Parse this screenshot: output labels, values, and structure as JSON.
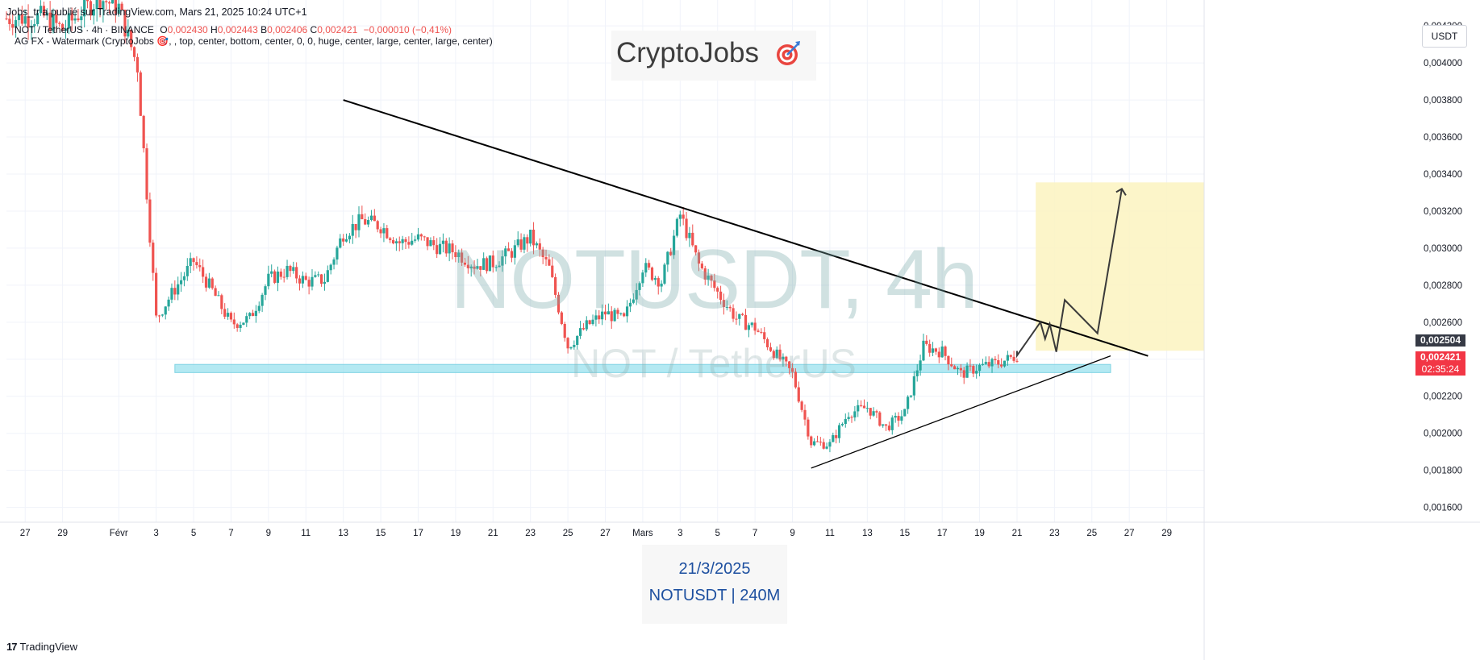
{
  "header": {
    "published_by": "Jobs_tr a publié sur TradingView.com, Mars 21, 2025 10:24 UTC+1"
  },
  "legend": {
    "symbol_line": "NOT / TetherUS · 4h · BINANCE",
    "o_label": "O",
    "o_value": "0,002430",
    "h_label": "H",
    "h_value": "0,002443",
    "b_label": "B",
    "b_value": "0,002406",
    "c_label": "C",
    "c_value": "0,002421",
    "change": "−0,000010 (−0,41%)",
    "indicator_line": "AG FX - Watermark (CryptoJobs 🎯, , top, center, bottom, center, 0, 0, huge, center, large, center, large, center)"
  },
  "watermark": {
    "brand": "CryptoJobs",
    "symbol_big": "NOTUSDT, 4h",
    "symbol_small": "NOT / TetherUS",
    "date": "21/3/2025",
    "ticker_tf": "NOTUSDT | 240M"
  },
  "currency_button": "USDT",
  "price_tags": {
    "level_price": "0,002504",
    "last_price": "0,002421",
    "countdown": "02:35:24"
  },
  "footer": {
    "logo_mark": "17",
    "brand": "TradingView"
  },
  "colors": {
    "up": "#26a69a",
    "down": "#ef5350",
    "support_zone": "#9be2ee",
    "target_zone": "#fbf3bf",
    "trendline": "#000000",
    "projection": "#3a3a3a",
    "grid": "#f0f3fa",
    "tag_dark": "#363a45"
  },
  "chart_data": {
    "type": "candlestick",
    "title": "NOTUSDT, 4h",
    "yaxis": {
      "min": 0.00152,
      "max": 0.00434,
      "ticks": [
        0.0016,
        0.0018,
        0.002,
        0.0022,
        0.0024,
        0.0026,
        0.0028,
        0.003,
        0.0032,
        0.0034,
        0.0036,
        0.0038,
        0.004,
        0.0042
      ],
      "tick_labels": [
        "0,001600",
        "0,001800",
        "0,002000",
        "0,002200",
        "0,002400",
        "0,002600",
        "0,002800",
        "0,003000",
        "0,003200",
        "0,003400",
        "0,003600",
        "0,003800",
        "0,004000",
        "0,004200"
      ]
    },
    "xaxis": {
      "tick_labels": [
        "27",
        "29",
        "Févr",
        "3",
        "5",
        "7",
        "9",
        "11",
        "13",
        "15",
        "17",
        "19",
        "21",
        "23",
        "25",
        "27",
        "Mars",
        "3",
        "5",
        "7",
        "9",
        "11",
        "13",
        "15",
        "17",
        "19",
        "21",
        "23",
        "25",
        "27",
        "29"
      ],
      "tick_dates": [
        "2025-01-27",
        "2025-01-29",
        "2025-02-01",
        "2025-02-03",
        "2025-02-05",
        "2025-02-07",
        "2025-02-09",
        "2025-02-11",
        "2025-02-13",
        "2025-02-15",
        "2025-02-17",
        "2025-02-19",
        "2025-02-21",
        "2025-02-23",
        "2025-02-25",
        "2025-02-27",
        "2025-03-01",
        "2025-03-03",
        "2025-03-05",
        "2025-03-07",
        "2025-03-09",
        "2025-03-11",
        "2025-03-13",
        "2025-03-15",
        "2025-03-17",
        "2025-03-19",
        "2025-03-21",
        "2025-03-23",
        "2025-03-25",
        "2025-03-27",
        "2025-03-29"
      ],
      "range": [
        "2025-01-26",
        "2025-03-31"
      ]
    },
    "price_path": [
      [
        "2025-01-26",
        0.00424
      ],
      [
        "2025-01-28",
        0.00425
      ],
      [
        "2025-01-29",
        0.00418
      ],
      [
        "2025-01-30",
        0.00428
      ],
      [
        "2025-01-31",
        0.00435
      ],
      [
        "2025-02-01",
        0.0043
      ],
      [
        "2025-02-02",
        0.00398
      ],
      [
        "2025-02-03",
        0.00262
      ],
      [
        "2025-02-04",
        0.00278
      ],
      [
        "2025-02-05",
        0.00293
      ],
      [
        "2025-02-06",
        0.00277
      ],
      [
        "2025-02-07",
        0.00259
      ],
      [
        "2025-02-08",
        0.00262
      ],
      [
        "2025-02-09",
        0.00283
      ],
      [
        "2025-02-10",
        0.00288
      ],
      [
        "2025-02-11",
        0.00282
      ],
      [
        "2025-02-12",
        0.00283
      ],
      [
        "2025-02-13",
        0.00308
      ],
      [
        "2025-02-14",
        0.00315
      ],
      [
        "2025-02-15",
        0.00312
      ],
      [
        "2025-02-16",
        0.00303
      ],
      [
        "2025-02-17",
        0.00305
      ],
      [
        "2025-02-18",
        0.00301
      ],
      [
        "2025-02-19",
        0.00298
      ],
      [
        "2025-02-20",
        0.00291
      ],
      [
        "2025-02-21",
        0.00292
      ],
      [
        "2025-02-22",
        0.00298
      ],
      [
        "2025-02-23",
        0.00306
      ],
      [
        "2025-02-24",
        0.00289
      ],
      [
        "2025-02-25",
        0.00247
      ],
      [
        "2025-02-26",
        0.00258
      ],
      [
        "2025-02-27",
        0.00265
      ],
      [
        "2025-02-28",
        0.00261
      ],
      [
        "2025-03-01",
        0.0029
      ],
      [
        "2025-03-02",
        0.00282
      ],
      [
        "2025-03-03",
        0.00318
      ],
      [
        "2025-03-04",
        0.00291
      ],
      [
        "2025-03-05",
        0.00276
      ],
      [
        "2025-03-06",
        0.00262
      ],
      [
        "2025-03-07",
        0.00257
      ],
      [
        "2025-03-08",
        0.00244
      ],
      [
        "2025-03-09",
        0.00232
      ],
      [
        "2025-03-10",
        0.00195
      ],
      [
        "2025-03-11",
        0.00194
      ],
      [
        "2025-03-12",
        0.00211
      ],
      [
        "2025-03-13",
        0.00214
      ],
      [
        "2025-03-14",
        0.00203
      ],
      [
        "2025-03-15",
        0.00211
      ],
      [
        "2025-03-16",
        0.00247
      ],
      [
        "2025-03-17",
        0.00244
      ],
      [
        "2025-03-18",
        0.00232
      ],
      [
        "2025-03-19",
        0.00236
      ],
      [
        "2025-03-20",
        0.00238
      ],
      [
        "2025-03-21",
        0.00242
      ]
    ],
    "annotations": {
      "descending_trendline": [
        [
          "2025-02-13",
          0.0038
        ],
        [
          "2025-03-28",
          0.002418
        ]
      ],
      "ascending_trendline": [
        [
          "2025-03-10",
          0.001812
        ],
        [
          "2025-03-26",
          0.002418
        ]
      ],
      "support_zone": {
        "from": "2025-02-04",
        "to": "2025-03-26",
        "low": 0.002328,
        "high": 0.002372
      },
      "target_zone": {
        "from": "2025-03-22",
        "to": "2025-03-31",
        "low": 0.002446,
        "high": 0.003355
      },
      "projection_path": [
        [
          "2025-03-21",
          0.002445
        ],
        [
          "2025-03-21",
          0.00242
        ],
        [
          "2025-03-22",
          0.0026
        ],
        [
          "2025-03-22",
          0.00251
        ],
        [
          "2025-03-22",
          0.00259
        ],
        [
          "2025-03-23",
          0.00244
        ],
        [
          "2025-03-23",
          0.00272
        ],
        [
          "2025-03-25",
          0.00254
        ],
        [
          "2025-03-26",
          0.00332
        ]
      ],
      "level_line": 0.002504
    }
  }
}
